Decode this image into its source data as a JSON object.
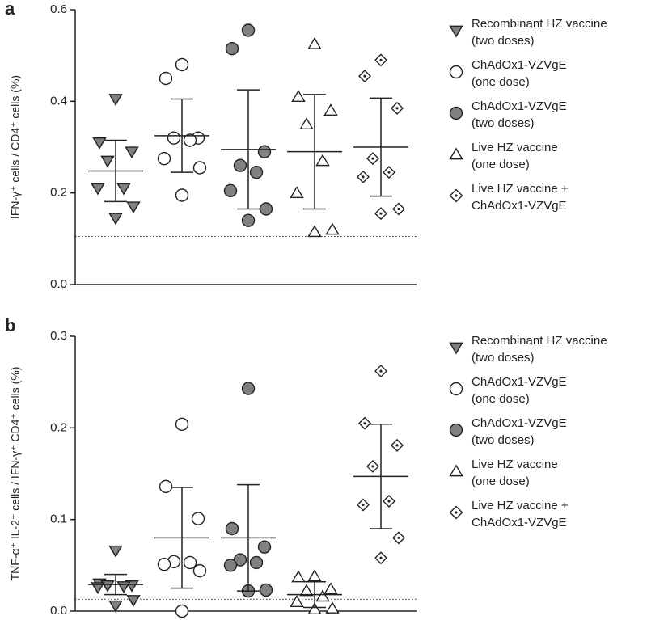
{
  "chart_data": [
    {
      "type": "dot",
      "panel_label": "a",
      "y_label": "IFN-γ⁺ cells / CD4⁺ cells (%)",
      "ylim": [
        0,
        0.6
      ],
      "yticks": [
        {
          "value": 0,
          "label": "0.0"
        },
        0.2,
        0.4,
        0.6
      ],
      "reference_line": 0.105,
      "series": [
        {
          "name": "Recombinant HZ vaccine\n(two doses)",
          "marker": "triangle-down",
          "color": "#808080",
          "values": [
            0.405,
            0.31,
            0.29,
            0.27,
            0.21,
            0.21,
            0.17,
            0.145
          ],
          "mean": 0.248,
          "sd": 0.067
        },
        {
          "name": "ChAdOx1-VZVgE\n(one dose)",
          "marker": "circle",
          "color": "#ffffff",
          "values": [
            0.48,
            0.45,
            0.32,
            0.32,
            0.315,
            0.275,
            0.255,
            0.195
          ],
          "mean": 0.325,
          "sd": 0.08
        },
        {
          "name": "ChAdOx1-VZVgE\n(two doses)",
          "marker": "circle",
          "color": "#808080",
          "values": [
            0.555,
            0.515,
            0.29,
            0.26,
            0.245,
            0.205,
            0.165,
            0.14
          ],
          "mean": 0.295,
          "sd": 0.13
        },
        {
          "name": "Live HZ vaccine\n(one dose)",
          "marker": "triangle-up",
          "color": "#ffffff",
          "values": [
            0.525,
            0.41,
            0.38,
            0.35,
            0.27,
            0.2,
            0.12,
            0.115
          ],
          "mean": 0.29,
          "sd": 0.125
        },
        {
          "name": "Live HZ vaccine +\nChAdOx1-VZVgE",
          "marker": "diamond",
          "color": "#ffffff",
          "values": [
            0.49,
            0.455,
            0.385,
            0.275,
            0.245,
            0.235,
            0.165,
            0.155
          ],
          "mean": 0.3,
          "sd": 0.107
        }
      ]
    },
    {
      "type": "dot",
      "panel_label": "b",
      "y_label": "TNF-α⁺ IL-2⁺ cells / IFN-γ⁺ CD4⁺ cells (%)",
      "ylim": [
        0,
        0.3
      ],
      "yticks": [
        {
          "value": 0,
          "label": "0.0"
        },
        0.1,
        0.2,
        0.3
      ],
      "reference_line": 0.013,
      "series": [
        {
          "name": "Recombinant HZ vaccine\n(two doses)",
          "marker": "triangle-down",
          "color": "#808080",
          "values": [
            0.066,
            0.03,
            0.028,
            0.028,
            0.027,
            0.026,
            0.012,
            0.006
          ],
          "mean": 0.029,
          "sd": 0.011
        },
        {
          "name": "ChAdOx1-VZVgE\n(one dose)",
          "marker": "circle",
          "color": "#ffffff",
          "values": [
            0.204,
            0.136,
            0.101,
            0.054,
            0.053,
            0.051,
            0.044,
            0.0
          ],
          "mean": 0.08,
          "sd": 0.055
        },
        {
          "name": "ChAdOx1-VZVgE\n(two doses)",
          "marker": "circle",
          "color": "#808080",
          "values": [
            0.243,
            0.09,
            0.07,
            0.056,
            0.053,
            0.05,
            0.023,
            0.022
          ],
          "mean": 0.08,
          "sd": 0.058
        },
        {
          "name": "Live HZ vaccine\n(one dose)",
          "marker": "triangle-up",
          "color": "#ffffff",
          "values": [
            0.038,
            0.037,
            0.024,
            0.022,
            0.016,
            0.01,
            0.003,
            0.002
          ],
          "mean": 0.018,
          "sd": 0.014
        },
        {
          "name": "Live HZ vaccine +\nChAdOx1-VZVgE",
          "marker": "diamond",
          "color": "#ffffff",
          "values": [
            0.262,
            0.205,
            0.181,
            0.158,
            0.12,
            0.116,
            0.08,
            0.058
          ],
          "mean": 0.147,
          "sd": 0.057
        }
      ]
    }
  ]
}
